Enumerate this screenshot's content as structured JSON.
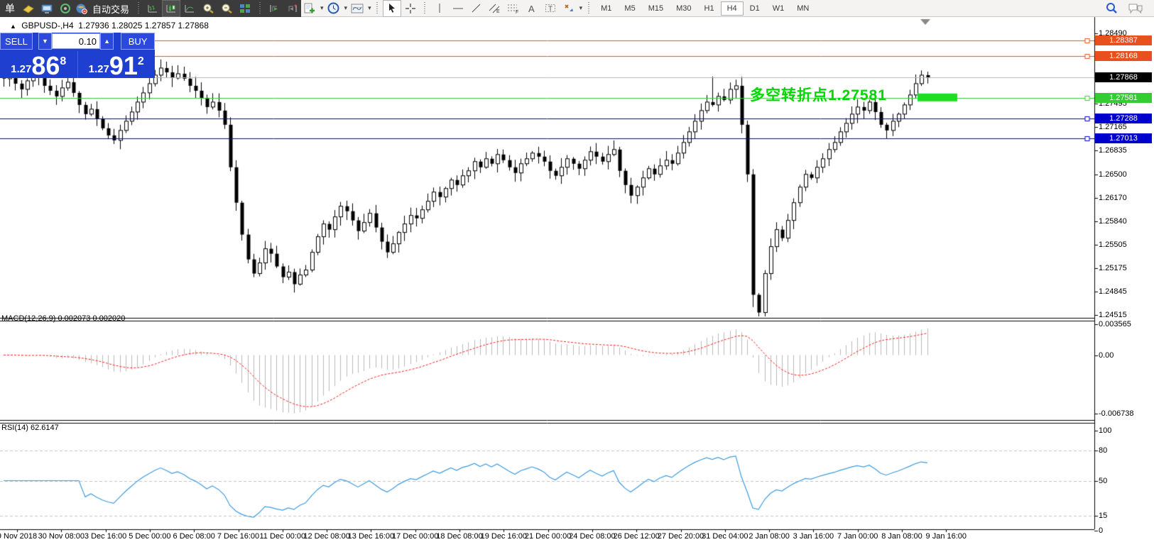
{
  "toolbar": {
    "new_order_label": "单",
    "autotrading_label": "自动交易",
    "icons_dark": [
      "history-book-icon",
      "terminal-icon",
      "webinar-icon",
      "autotrading-globe-icon"
    ],
    "chart_style_icons": [
      "bar-chart-icon",
      "candlestick-chart-icon",
      "line-chart-icon"
    ],
    "zoom_icons": [
      "zoom-in-icon",
      "zoom-out-icon",
      "tile-windows-icon"
    ],
    "scroll_icons": [
      "auto-scroll-icon",
      "chart-shift-icon"
    ],
    "object_icons": [
      "indicators-add-icon",
      "periods-icon",
      "templates-icon",
      "cursor-icon",
      "crosshair-icon",
      "vertical-line-icon",
      "horizontal-line-icon",
      "trendline-icon",
      "equidistant-channel-icon",
      "fibonacci-icon",
      "text-icon",
      "text-label-icon",
      "arrows-icon"
    ],
    "timeframes": [
      "M1",
      "M5",
      "M15",
      "M30",
      "H1",
      "H4",
      "D1",
      "W1",
      "MN"
    ],
    "active_timeframe": "H4",
    "right_icons": [
      "search-icon",
      "chat-icon"
    ]
  },
  "chart": {
    "title": {
      "symbol_period": "GBPUSD-,H4",
      "open": "1.27936",
      "high": "1.28025",
      "low": "1.27857",
      "close": "1.27868"
    },
    "one_click": {
      "sell_label": "SELL",
      "buy_label": "BUY",
      "volume": "0.10",
      "sell_small": "1.27",
      "sell_big": "86",
      "sell_sup": "8",
      "buy_small": "1.27",
      "buy_big": "91",
      "buy_sup": "2"
    },
    "annotation": {
      "text": "多空转折点1.27581",
      "color": "#00d800"
    },
    "price_axis": {
      "ticks": [
        {
          "label": "1.28490",
          "price": 1.2849
        },
        {
          "label": "1.27495",
          "price": 1.27495
        },
        {
          "label": "1.27165",
          "price": 1.27165
        },
        {
          "label": "1.26835",
          "price": 1.26835
        },
        {
          "label": "1.26500",
          "price": 1.265
        },
        {
          "label": "1.26170",
          "price": 1.2617
        },
        {
          "label": "1.25840",
          "price": 1.2584
        },
        {
          "label": "1.25505",
          "price": 1.25505
        },
        {
          "label": "1.25175",
          "price": 1.25175
        },
        {
          "label": "1.24845",
          "price": 1.24845
        },
        {
          "label": "1.24515",
          "price": 1.24515
        }
      ],
      "tags": [
        {
          "label": "1.28387",
          "price": 1.28387,
          "color": "#e8501e"
        },
        {
          "label": "1.28168",
          "price": 1.28168,
          "color": "#e8501e"
        },
        {
          "label": "1.27868",
          "price": 1.27868,
          "color": "#000000"
        },
        {
          "label": "1.27581",
          "price": 1.27581,
          "color": "#33cc33"
        },
        {
          "label": "1.27288",
          "price": 1.27288,
          "color": "#0000cc"
        },
        {
          "label": "1.27013",
          "price": 1.27013,
          "color": "#0000cc"
        }
      ]
    },
    "time_axis": {
      "labels": [
        "9 Nov 2018",
        "30 Nov 08:00",
        "3 Dec 16:00",
        "5 Dec 00:00",
        "6 Dec 08:00",
        "7 Dec 16:00",
        "11 Dec 00:00",
        "12 Dec 08:00",
        "13 Dec 16:00",
        "17 Dec 00:00",
        "18 Dec 08:00",
        "19 Dec 16:00",
        "21 Dec 00:00",
        "24 Dec 08:00",
        "26 Dec 12:00",
        "27 Dec 20:00",
        "31 Dec 04:00",
        "2 Jan 08:00",
        "3 Jan 16:00",
        "7 Jan 00:00",
        "8 Jan 08:00",
        "9 Jan 16:00"
      ]
    },
    "indicators": {
      "macd": {
        "label": "MACD(12,26,9)",
        "value1": "0.002073",
        "value2": "0.002020",
        "axis": [
          {
            "label": "0.003565",
            "value": 0.003565
          },
          {
            "label": "0.00",
            "value": 0
          },
          {
            "label": "-0.006738",
            "value": -0.006738
          }
        ]
      },
      "rsi": {
        "label": "RSI(14)",
        "value": "62.6147",
        "axis": [
          {
            "label": "100",
            "value": 100
          },
          {
            "label": "80",
            "value": 80
          },
          {
            "label": "50",
            "value": 50
          },
          {
            "label": "15",
            "value": 15
          },
          {
            "label": "0",
            "value": 0
          }
        ],
        "levels": [
          80,
          50,
          15
        ]
      }
    }
  },
  "chart_data": {
    "type": "candlestick",
    "symbol": "GBPUSD",
    "period": "H4",
    "price_range": {
      "top": 1.2849,
      "bottom": 1.24515
    },
    "closes": [
      1.2785,
      1.2792,
      1.2778,
      1.277,
      1.2782,
      1.2795,
      1.2788,
      1.2775,
      1.2768,
      1.276,
      1.2772,
      1.278,
      1.2765,
      1.2748,
      1.2735,
      1.2742,
      1.2728,
      1.2715,
      1.2705,
      1.2698,
      1.2712,
      1.2725,
      1.2738,
      1.2752,
      1.2765,
      1.2778,
      1.279,
      1.28,
      1.2794,
      1.2786,
      1.2792,
      1.2785,
      1.2775,
      1.2768,
      1.2758,
      1.2745,
      1.2752,
      1.274,
      1.272,
      1.266,
      1.261,
      1.2565,
      1.253,
      1.251,
      1.2525,
      1.2545,
      1.2538,
      1.252,
      1.2505,
      1.2512,
      1.2495,
      1.2508,
      1.2515,
      1.254,
      1.2562,
      1.258,
      1.2572,
      1.259,
      1.2605,
      1.2598,
      1.2585,
      1.257,
      1.2582,
      1.2595,
      1.2575,
      1.2555,
      1.254,
      1.2552,
      1.2568,
      1.258,
      1.2592,
      1.2588,
      1.26,
      1.2612,
      1.2625,
      1.2618,
      1.263,
      1.2642,
      1.2635,
      1.2648,
      1.2655,
      1.2668,
      1.266,
      1.2672,
      1.2665,
      1.2678,
      1.267,
      1.266,
      1.2652,
      1.2665,
      1.2672,
      1.268,
      1.2675,
      1.2668,
      1.2655,
      1.2648,
      1.266,
      1.2672,
      1.2665,
      1.2658,
      1.267,
      1.2682,
      1.2675,
      1.2668,
      1.2678,
      1.2685,
      1.2655,
      1.2635,
      1.262,
      1.2632,
      1.2645,
      1.2658,
      1.265,
      1.2662,
      1.267,
      1.2665,
      1.268,
      1.2695,
      1.271,
      1.2725,
      1.274,
      1.2752,
      1.2748,
      1.276,
      1.2755,
      1.277,
      1.2775,
      1.272,
      1.265,
      1.248,
      1.2455,
      1.251,
      1.2548,
      1.2572,
      1.256,
      1.2585,
      1.261,
      1.2632,
      1.265,
      1.2645,
      1.266,
      1.2672,
      1.2685,
      1.2695,
      1.271,
      1.2722,
      1.2735,
      1.2745,
      1.274,
      1.2752,
      1.2738,
      1.272,
      1.2712,
      1.2725,
      1.2735,
      1.2748,
      1.2762,
      1.2778,
      1.279,
      1.2787
    ],
    "horizontal_lines": [
      {
        "price": 1.28387,
        "color": "#e8501e",
        "style": "solid"
      },
      {
        "price": 1.28168,
        "color": "#e8501e",
        "style": "solid"
      },
      {
        "price": 1.27868,
        "color": "#b8b8b8",
        "style": "solid"
      },
      {
        "price": 1.27581,
        "color": "#33cc33",
        "style": "solid"
      },
      {
        "price": 1.27288,
        "color": "#0000cc",
        "style": "solid"
      },
      {
        "price": 1.27013,
        "color": "#0000cc",
        "style": "solid"
      }
    ],
    "green_zone_rect": {
      "price": 1.27581,
      "color": "#1fdd1f"
    },
    "macd_params": {
      "fast": 12,
      "slow": 26,
      "signal": 9,
      "hist_color": "#b9b9b9",
      "signal_color": "#ff2020"
    },
    "rsi_params": {
      "period": 14,
      "color": "#3e9bdf"
    }
  }
}
